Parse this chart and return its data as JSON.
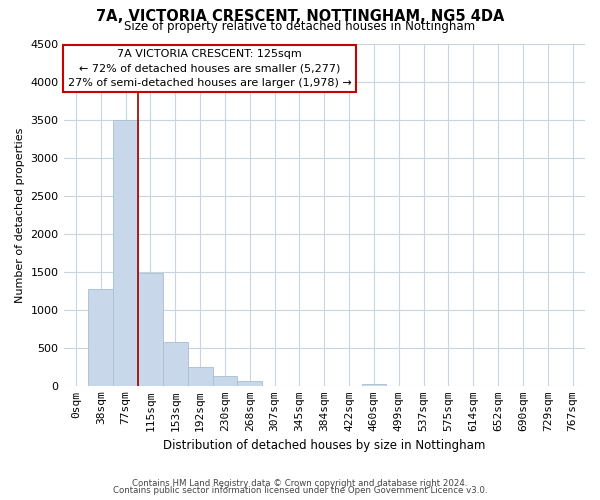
{
  "title": "7A, VICTORIA CRESCENT, NOTTINGHAM, NG5 4DA",
  "subtitle": "Size of property relative to detached houses in Nottingham",
  "xlabel": "Distribution of detached houses by size in Nottingham",
  "ylabel": "Number of detached properties",
  "bar_labels": [
    "0sqm",
    "38sqm",
    "77sqm",
    "115sqm",
    "153sqm",
    "192sqm",
    "230sqm",
    "268sqm",
    "307sqm",
    "345sqm",
    "384sqm",
    "422sqm",
    "460sqm",
    "499sqm",
    "537sqm",
    "575sqm",
    "614sqm",
    "652sqm",
    "690sqm",
    "729sqm",
    "767sqm"
  ],
  "bar_values": [
    0,
    1270,
    3500,
    1480,
    575,
    245,
    130,
    65,
    0,
    0,
    0,
    0,
    30,
    0,
    0,
    0,
    0,
    0,
    0,
    0,
    0
  ],
  "bar_color": "#c8d8ea",
  "bar_edge_color": "#a8bfd0",
  "ylim": [
    0,
    4500
  ],
  "yticks": [
    0,
    500,
    1000,
    1500,
    2000,
    2500,
    3000,
    3500,
    4000,
    4500
  ],
  "property_line_x": 3.0,
  "property_line_color": "#990000",
  "annotation_title": "7A VICTORIA CRESCENT: 125sqm",
  "annotation_line1": "← 72% of detached houses are smaller (5,277)",
  "annotation_line2": "27% of semi-detached houses are larger (1,978) →",
  "footnote1": "Contains HM Land Registry data © Crown copyright and database right 2024.",
  "footnote2": "Contains public sector information licensed under the Open Government Licence v3.0.",
  "background_color": "#ffffff",
  "grid_color": "#c8d4de"
}
